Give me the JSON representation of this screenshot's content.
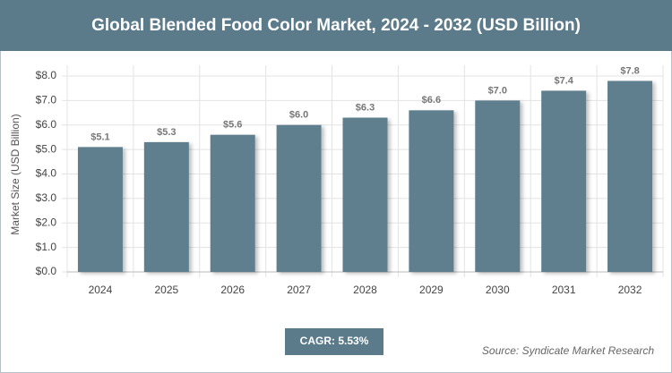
{
  "chart_data": {
    "type": "bar",
    "title": "Global Blended Food Color Market, 2024 - 2032 (USD Billion)",
    "y_label": "Market Size (USD Billion)",
    "categories": [
      "2024",
      "2025",
      "2026",
      "2027",
      "2028",
      "2029",
      "2030",
      "2031",
      "2032"
    ],
    "values": [
      5.1,
      5.3,
      5.6,
      6.0,
      6.3,
      6.6,
      7.0,
      7.4,
      7.8
    ],
    "value_labels": [
      "$5.1",
      "$5.3",
      "$5.6",
      "$6.0",
      "$6.3",
      "$6.6",
      "$7.0",
      "$7.4",
      "$7.8"
    ],
    "color": "#5f7f8f",
    "ylim": [
      0,
      8
    ],
    "yticks": [
      {
        "value": 0,
        "label": "$0.0"
      },
      {
        "value": 1,
        "label": "$1.0"
      },
      {
        "value": 2,
        "label": "$2.0"
      },
      {
        "value": 3,
        "label": "$3.0"
      },
      {
        "value": 4,
        "label": "$4.0"
      },
      {
        "value": 5,
        "label": "$5.0"
      },
      {
        "value": 6,
        "label": "$6.0"
      },
      {
        "value": 7,
        "label": "$7.0"
      },
      {
        "value": 8,
        "label": "$8.0"
      }
    ],
    "grid": true,
    "cagr": "CAGR: 5.53%",
    "source": "Source: Syndicate Market Research"
  }
}
